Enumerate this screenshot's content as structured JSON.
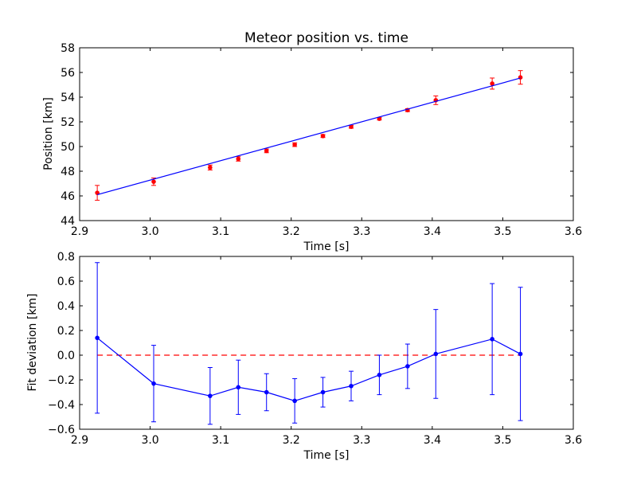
{
  "chart_data": [
    {
      "type": "scatter",
      "title": "Meteor position vs. time",
      "xlabel": "Time [s]",
      "ylabel": "Position [km]",
      "xlim": [
        2.9,
        3.6
      ],
      "ylim": [
        44,
        58
      ],
      "xticks": [
        "2.9",
        "3.0",
        "3.1",
        "3.2",
        "3.3",
        "3.4",
        "3.5",
        "3.6"
      ],
      "yticks": [
        "44",
        "46",
        "48",
        "50",
        "52",
        "54",
        "56",
        "58"
      ],
      "series": [
        {
          "color": "#ff0000",
          "kind": "points-with-errorbars",
          "x": [
            2.925,
            3.005,
            3.085,
            3.125,
            3.165,
            3.205,
            3.245,
            3.285,
            3.325,
            3.365,
            3.405,
            3.485,
            3.525
          ],
          "y": [
            46.25,
            47.15,
            48.3,
            49.0,
            49.65,
            50.15,
            50.85,
            51.6,
            52.25,
            52.95,
            53.75,
            55.1,
            55.6
          ],
          "yerr": [
            0.6,
            0.3,
            0.2,
            0.18,
            0.15,
            0.15,
            0.12,
            0.12,
            0.1,
            0.12,
            0.35,
            0.45,
            0.55
          ]
        },
        {
          "color": "#0000ff",
          "kind": "fit-line",
          "x": [
            2.925,
            3.525
          ],
          "y": [
            46.1,
            55.55
          ]
        }
      ]
    },
    {
      "type": "line",
      "xlabel": "Time [s]",
      "ylabel": "Fit deviation [km]",
      "xlim": [
        2.9,
        3.6
      ],
      "ylim": [
        -0.6,
        0.8
      ],
      "xticks": [
        "2.9",
        "3.0",
        "3.1",
        "3.2",
        "3.3",
        "3.4",
        "3.5",
        "3.6"
      ],
      "yticks": [
        "−0.6",
        "−0.4",
        "−0.2",
        "0.0",
        "0.2",
        "0.4",
        "0.6",
        "0.8"
      ],
      "reference_line": {
        "y": 0.0,
        "color": "#ff0000",
        "style": "dashed"
      },
      "series": [
        {
          "color": "#0000ff",
          "kind": "line-with-errorbars",
          "x": [
            2.925,
            3.005,
            3.085,
            3.125,
            3.165,
            3.205,
            3.245,
            3.285,
            3.325,
            3.365,
            3.405,
            3.485,
            3.525
          ],
          "y": [
            0.14,
            -0.23,
            -0.33,
            -0.26,
            -0.3,
            -0.37,
            -0.3,
            -0.25,
            -0.16,
            -0.09,
            0.01,
            0.13,
            0.01
          ],
          "yerr": [
            0.61,
            0.31,
            0.23,
            0.22,
            0.15,
            0.18,
            0.12,
            0.12,
            0.16,
            0.18,
            0.36,
            0.45,
            0.54
          ]
        }
      ]
    }
  ]
}
